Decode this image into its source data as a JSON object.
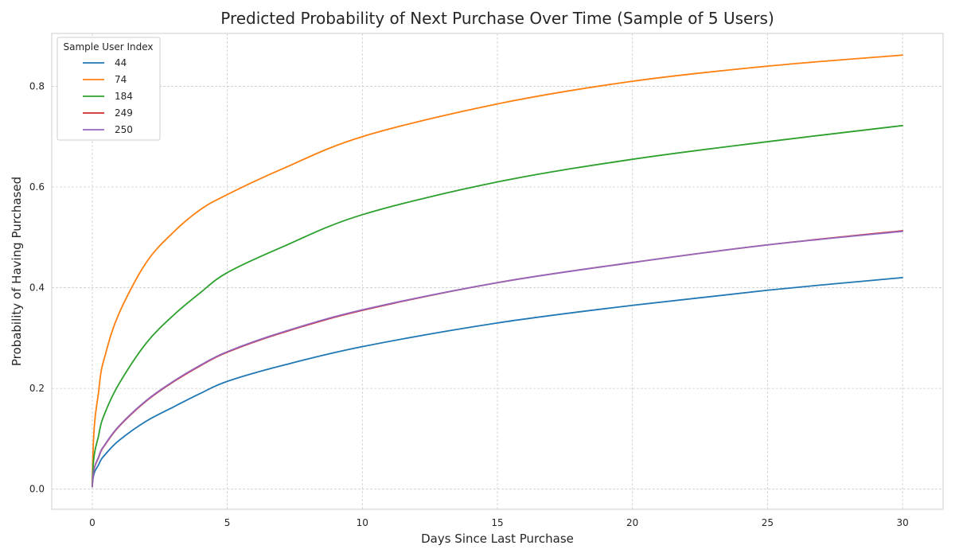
{
  "chart_data": {
    "type": "line",
    "title": "Predicted Probability of Next Purchase Over Time (Sample of 5 Users)",
    "xlabel": "Days Since Last Purchase",
    "ylabel": "Probability of Having Purchased",
    "xlim": [
      -1.5,
      31.5
    ],
    "ylim": [
      -0.04,
      0.905
    ],
    "xticks": [
      0,
      5,
      10,
      15,
      20,
      25,
      30
    ],
    "xtick_labels": [
      "0",
      "5",
      "10",
      "15",
      "20",
      "25",
      "30"
    ],
    "yticks": [
      0.0,
      0.2,
      0.4,
      0.6,
      0.8
    ],
    "ytick_labels": [
      "0.0",
      "0.2",
      "0.4",
      "0.6",
      "0.8"
    ],
    "grid": true,
    "legend": {
      "title": "Sample User Index",
      "position": "top-left"
    },
    "x": [
      0,
      0.25,
      0.5,
      1,
      2,
      3,
      4,
      5,
      7,
      10,
      15,
      20,
      25,
      30
    ],
    "series": [
      {
        "name": "44",
        "color": "#1f77b4",
        "values": [
          0.005,
          0.05,
          0.07,
          0.097,
          0.135,
          0.163,
          0.19,
          0.214,
          0.245,
          0.283,
          0.33,
          0.365,
          0.395,
          0.42
        ]
      },
      {
        "name": "74",
        "color": "#ff7f0e",
        "values": [
          0.005,
          0.2,
          0.27,
          0.35,
          0.45,
          0.51,
          0.555,
          0.585,
          0.635,
          0.7,
          0.765,
          0.81,
          0.84,
          0.862
        ]
      },
      {
        "name": "184",
        "color": "#2ca02c",
        "values": [
          0.005,
          0.11,
          0.155,
          0.21,
          0.29,
          0.345,
          0.39,
          0.43,
          0.48,
          0.545,
          0.61,
          0.655,
          0.69,
          0.722
        ]
      },
      {
        "name": "249",
        "color": "#d62728",
        "values": [
          0.005,
          0.065,
          0.09,
          0.125,
          0.175,
          0.213,
          0.245,
          0.272,
          0.31,
          0.355,
          0.41,
          0.45,
          0.485,
          0.513
        ]
      },
      {
        "name": "250",
        "color": "#9467bd",
        "values": [
          0.005,
          0.066,
          0.091,
          0.126,
          0.176,
          0.214,
          0.246,
          0.273,
          0.311,
          0.356,
          0.41,
          0.45,
          0.485,
          0.512
        ]
      }
    ]
  }
}
